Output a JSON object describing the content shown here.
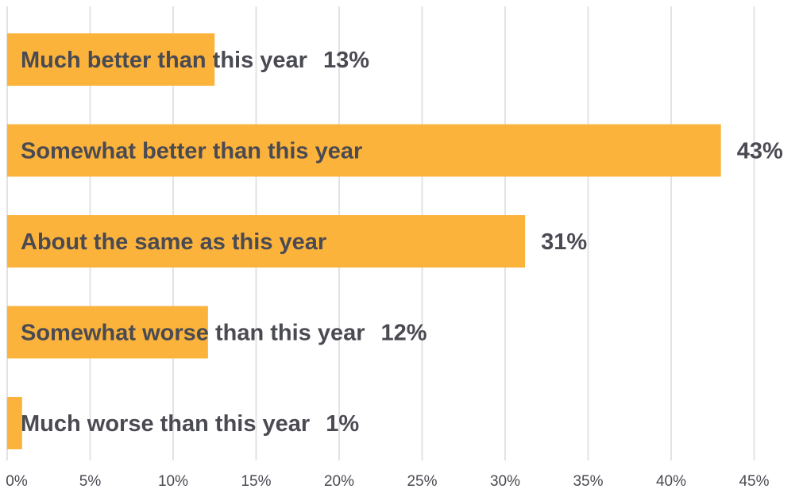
{
  "colors": {
    "bar": "#fbb33c",
    "grid": "#e3e3e3",
    "text": "#4a4a52"
  },
  "chart_data": {
    "type": "bar",
    "orientation": "horizontal",
    "title": "",
    "xlabel": "",
    "ylabel": "",
    "xlim": [
      0,
      45
    ],
    "grid": true,
    "legend": "none",
    "x_ticks": [
      "0%",
      "5%",
      "10%",
      "15%",
      "20%",
      "25%",
      "30%",
      "35%",
      "40%",
      "45%"
    ],
    "categories": [
      "Much better than this year",
      "Somewhat better than this year",
      "About the same as this year",
      "Somewhat worse than this year",
      "Much worse than this year"
    ],
    "values": [
      12.5,
      43,
      31.2,
      12.1,
      0.9
    ],
    "data_labels": [
      "13%",
      "43%",
      "31%",
      "12%",
      "1%"
    ]
  }
}
